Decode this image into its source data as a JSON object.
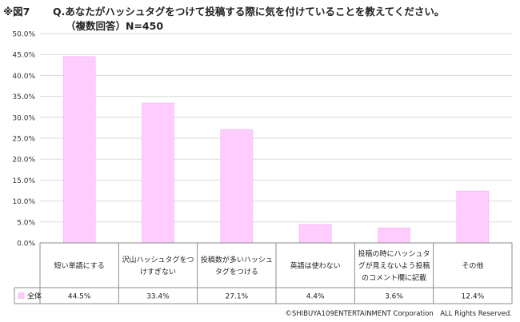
{
  "header": {
    "fig_label": "※図7",
    "title": "Q.あなたがハッシュタグをつけて投稿する際に気を付けていることを教えてください。",
    "subtitle": "（複数回答）N=450"
  },
  "footer": {
    "copyright": "©SHIBUYA109ENTERTAINMENT Corporation　ALL Rights Reserved."
  },
  "colors": {
    "bar": "#FFCCFF",
    "bar_stroke": "#F2B3F2",
    "grid": "#D9D9D9",
    "axis": "#8C8C8C"
  },
  "chart_data": {
    "type": "bar",
    "title": "Q.あなたがハッシュタグをつけて投稿する際に気を付けていることを教えてください。",
    "categories": [
      [
        "短い単語にする"
      ],
      [
        "沢山ハッシュタグをつ",
        "けすぎない"
      ],
      [
        "投稿数が多いハッシュ",
        "タグをつける"
      ],
      [
        "英語は使わない"
      ],
      [
        "投稿の時にハッシュタ",
        "グが見えないよう投稿",
        "のコメント欄に記載"
      ],
      [
        "その他"
      ]
    ],
    "series": [
      {
        "name": "全体",
        "values": [
          44.5,
          33.4,
          27.1,
          4.4,
          3.6,
          12.4
        ]
      }
    ],
    "value_labels": [
      "44.5%",
      "33.4%",
      "27.1%",
      "4.4%",
      "3.6%",
      "12.4%"
    ],
    "y_ticks": [
      "0.0%",
      "5.0%",
      "10.0%",
      "15.0%",
      "20.0%",
      "25.0%",
      "30.0%",
      "35.0%",
      "40.0%",
      "45.0%",
      "50.0%"
    ],
    "ylim": [
      0,
      50
    ],
    "grid": true,
    "legend": "data-table",
    "xlabel": "",
    "ylabel": ""
  }
}
